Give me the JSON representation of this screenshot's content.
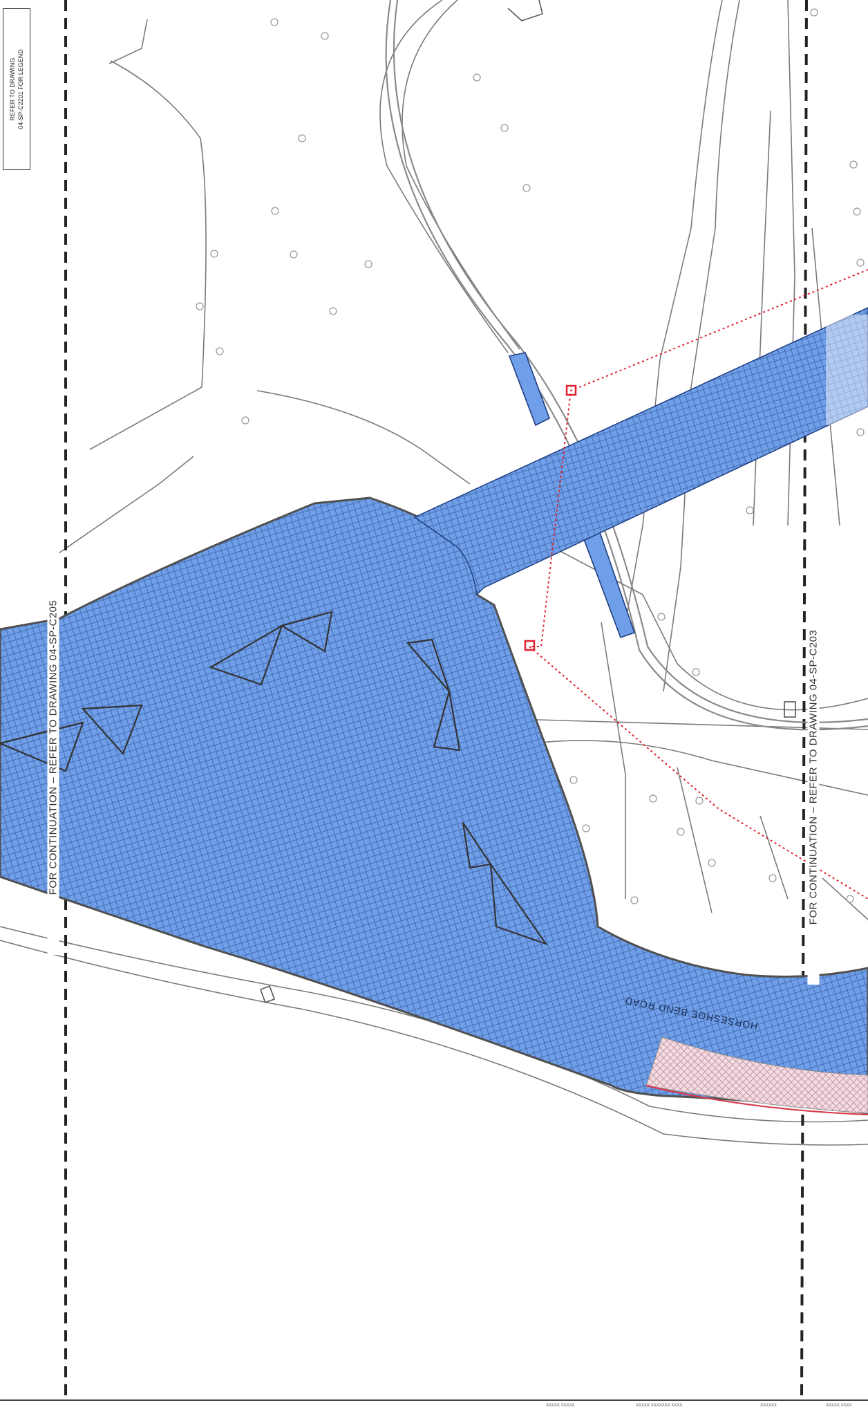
{
  "legend_note": "REFER TO DRAWING\n04-SP-C2201 FOR LEGEND",
  "continuation_left": "FOR CONTINUATION – REFER TO DRAWING 04-SP-C205",
  "continuation_right": "FOR CONTINUATION – REFER TO DRAWING 04-SP-C203",
  "road_label": "HORSESHOE BEND ROAD",
  "title_strip": [
    "XXXXX XXXXX",
    "XXXXX XXXXXXX XXXX",
    "XXXXXX",
    "XXXXX XXXX"
  ],
  "colors": {
    "hatch_fill": "#6f9fe8",
    "hatch_line": "#1f3d80",
    "pink_hatch_fill": "#f2dbe2",
    "red_trace": "#e0202e",
    "linework": "#6a6a6a",
    "dashed_border": "#222222"
  },
  "icons": [
    "tree-symbol",
    "control-point-marker"
  ]
}
